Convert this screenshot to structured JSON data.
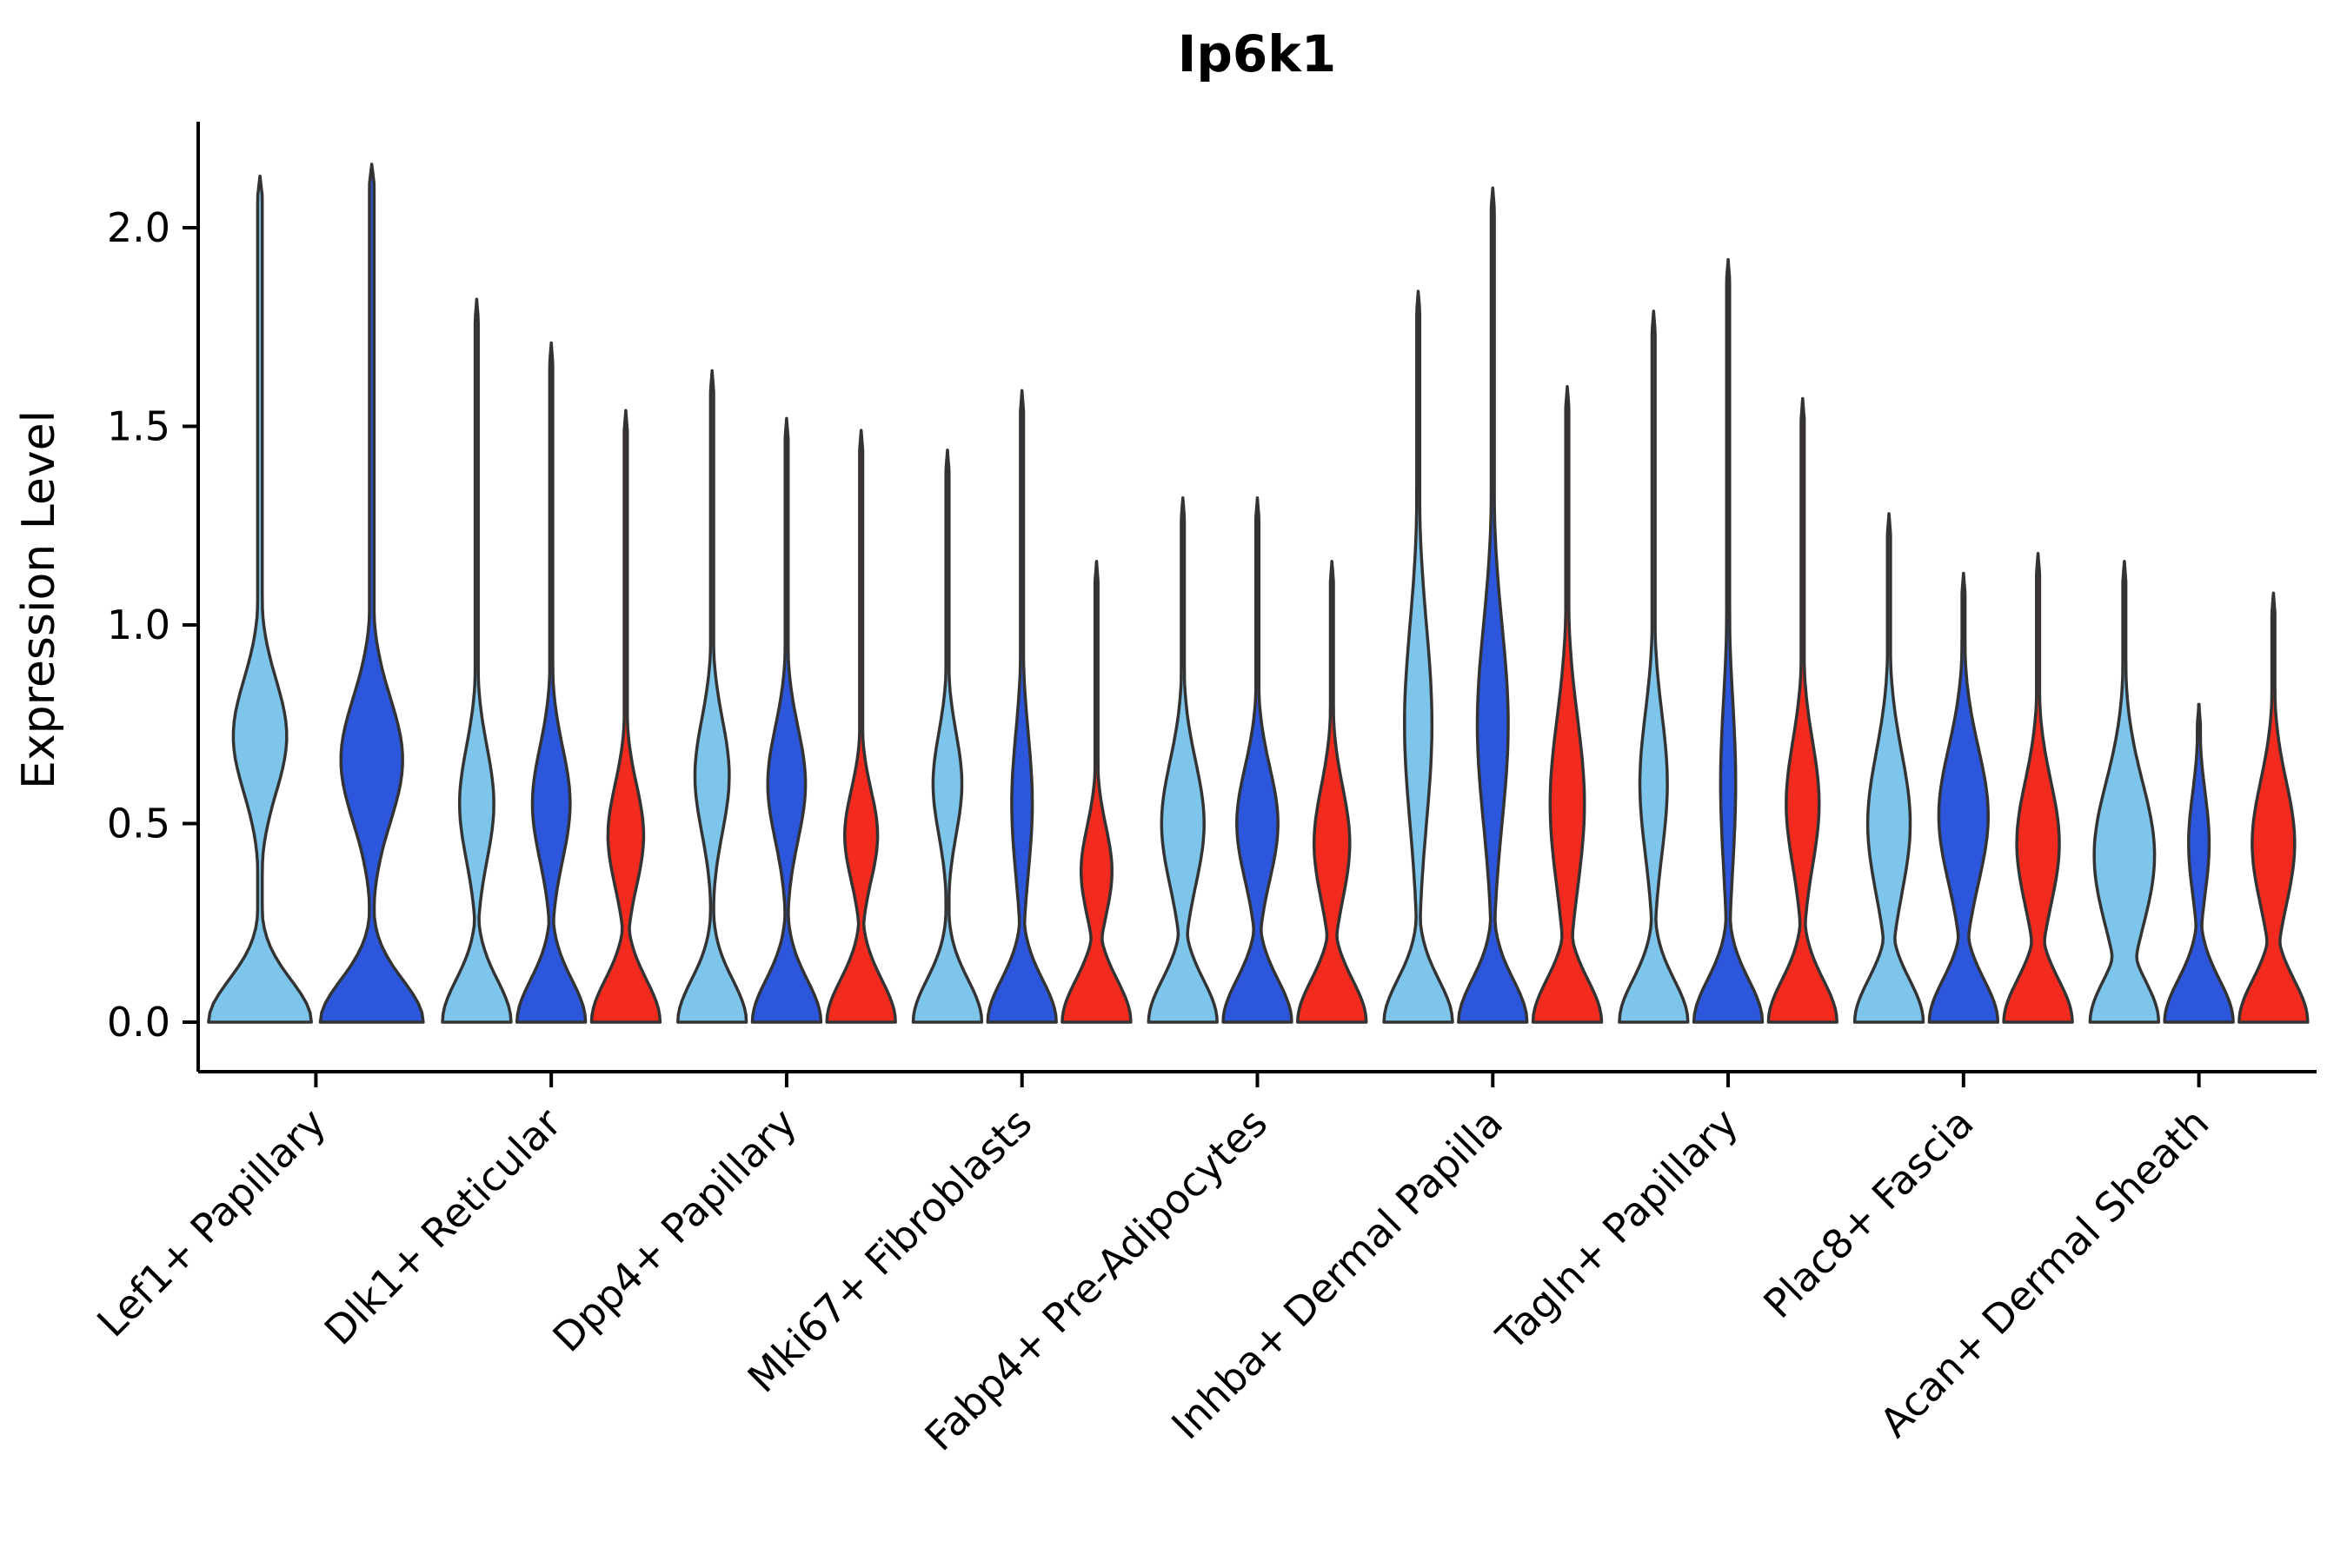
{
  "chart_data": {
    "type": "violin",
    "title": "Ip6k1",
    "ylabel": "Expression Level",
    "xlabel": "",
    "ylim": [
      0.0,
      2.25
    ],
    "y_ticks": [
      0.0,
      0.5,
      1.0,
      1.5,
      2.0
    ],
    "y_tick_labels": [
      "0.0",
      "0.5",
      "1.0",
      "1.5",
      "2.0"
    ],
    "grid": "off",
    "legend_position": "none",
    "palette": {
      "lightblue": "#7DC5EA",
      "darkblue": "#2C56DC",
      "red": "#F22B1E"
    },
    "stroke_color": "#333333",
    "categories": [
      "Lef1+ Papillary",
      "Dlk1+ Reticular",
      "Dpp4+ Papillary",
      "Mki67+ Fibroblasts",
      "Fabp4+ Pre-Adipocytes",
      "Inhba+ Dermal Papilla",
      "Tagln+ Papillary",
      "Plac8+ Fascia",
      "Acan+ Dermal Sheath"
    ],
    "groups": [
      {
        "category": "Lef1+ Papillary",
        "violins": [
          {
            "color": "lightblue",
            "max": 2.13,
            "lobe_center": 0.72,
            "lobe_width": 0.52,
            "lobe_spread": 0.2
          },
          {
            "color": "darkblue",
            "max": 2.16,
            "lobe_center": 0.66,
            "lobe_width": 0.6,
            "lobe_spread": 0.22
          }
        ]
      },
      {
        "category": "Dlk1+ Reticular",
        "violins": [
          {
            "color": "lightblue",
            "max": 1.82,
            "lobe_center": 0.55,
            "lobe_width": 0.5,
            "lobe_spread": 0.2
          },
          {
            "color": "darkblue",
            "max": 1.71,
            "lobe_center": 0.55,
            "lobe_width": 0.55,
            "lobe_spread": 0.2
          },
          {
            "color": "red",
            "max": 1.54,
            "lobe_center": 0.47,
            "lobe_width": 0.52,
            "lobe_spread": 0.18
          }
        ]
      },
      {
        "category": "Dpp4+ Papillary",
        "violins": [
          {
            "color": "lightblue",
            "max": 1.64,
            "lobe_center": 0.62,
            "lobe_width": 0.5,
            "lobe_spread": 0.2
          },
          {
            "color": "darkblue",
            "max": 1.52,
            "lobe_center": 0.6,
            "lobe_width": 0.55,
            "lobe_spread": 0.2
          },
          {
            "color": "red",
            "max": 1.49,
            "lobe_center": 0.47,
            "lobe_width": 0.48,
            "lobe_spread": 0.16
          }
        ]
      },
      {
        "category": "Mki67+ Fibroblasts",
        "violins": [
          {
            "color": "lightblue",
            "max": 1.44,
            "lobe_center": 0.6,
            "lobe_width": 0.42,
            "lobe_spread": 0.18
          },
          {
            "color": "darkblue",
            "max": 1.59,
            "lobe_center": 0.55,
            "lobe_width": 0.3,
            "lobe_spread": 0.25
          },
          {
            "color": "red",
            "max": 1.16,
            "lobe_center": 0.38,
            "lobe_width": 0.45,
            "lobe_spread": 0.16
          }
        ]
      },
      {
        "category": "Fabp4+ Pre-Adipocytes",
        "violins": [
          {
            "color": "lightblue",
            "max": 1.32,
            "lobe_center": 0.5,
            "lobe_width": 0.62,
            "lobe_spread": 0.22
          },
          {
            "color": "darkblue",
            "max": 1.32,
            "lobe_center": 0.5,
            "lobe_width": 0.6,
            "lobe_spread": 0.2
          },
          {
            "color": "red",
            "max": 1.16,
            "lobe_center": 0.45,
            "lobe_width": 0.52,
            "lobe_spread": 0.2
          }
        ]
      },
      {
        "category": "Inhba+ Dermal Papilla",
        "violins": [
          {
            "color": "lightblue",
            "max": 1.84,
            "lobe_center": 0.75,
            "lobe_width": 0.4,
            "lobe_spread": 0.35
          },
          {
            "color": "darkblue",
            "max": 2.1,
            "lobe_center": 0.75,
            "lobe_width": 0.45,
            "lobe_spread": 0.35
          },
          {
            "color": "red",
            "max": 1.6,
            "lobe_center": 0.55,
            "lobe_width": 0.5,
            "lobe_spread": 0.3
          }
        ]
      },
      {
        "category": "Tagln+ Papillary",
        "violins": [
          {
            "color": "lightblue",
            "max": 1.79,
            "lobe_center": 0.6,
            "lobe_width": 0.4,
            "lobe_spread": 0.25
          },
          {
            "color": "darkblue",
            "max": 1.92,
            "lobe_center": 0.6,
            "lobe_width": 0.22,
            "lobe_spread": 0.3
          },
          {
            "color": "red",
            "max": 1.57,
            "lobe_center": 0.55,
            "lobe_width": 0.48,
            "lobe_spread": 0.22
          }
        ]
      },
      {
        "category": "Plac8+ Fascia",
        "violins": [
          {
            "color": "lightblue",
            "max": 1.28,
            "lobe_center": 0.5,
            "lobe_width": 0.62,
            "lobe_spread": 0.25
          },
          {
            "color": "darkblue",
            "max": 1.13,
            "lobe_center": 0.52,
            "lobe_width": 0.72,
            "lobe_spread": 0.24
          },
          {
            "color": "red",
            "max": 1.18,
            "lobe_center": 0.45,
            "lobe_width": 0.62,
            "lobe_spread": 0.22
          }
        ]
      },
      {
        "category": "Acan+ Dermal Sheath",
        "violins": [
          {
            "color": "lightblue",
            "max": 1.16,
            "lobe_center": 0.42,
            "lobe_width": 0.88,
            "lobe_spread": 0.26
          },
          {
            "color": "darkblue",
            "max": 0.8,
            "lobe_center": 0.45,
            "lobe_width": 0.3,
            "lobe_spread": 0.18
          },
          {
            "color": "red",
            "max": 1.08,
            "lobe_center": 0.45,
            "lobe_width": 0.62,
            "lobe_spread": 0.22
          }
        ]
      }
    ]
  }
}
